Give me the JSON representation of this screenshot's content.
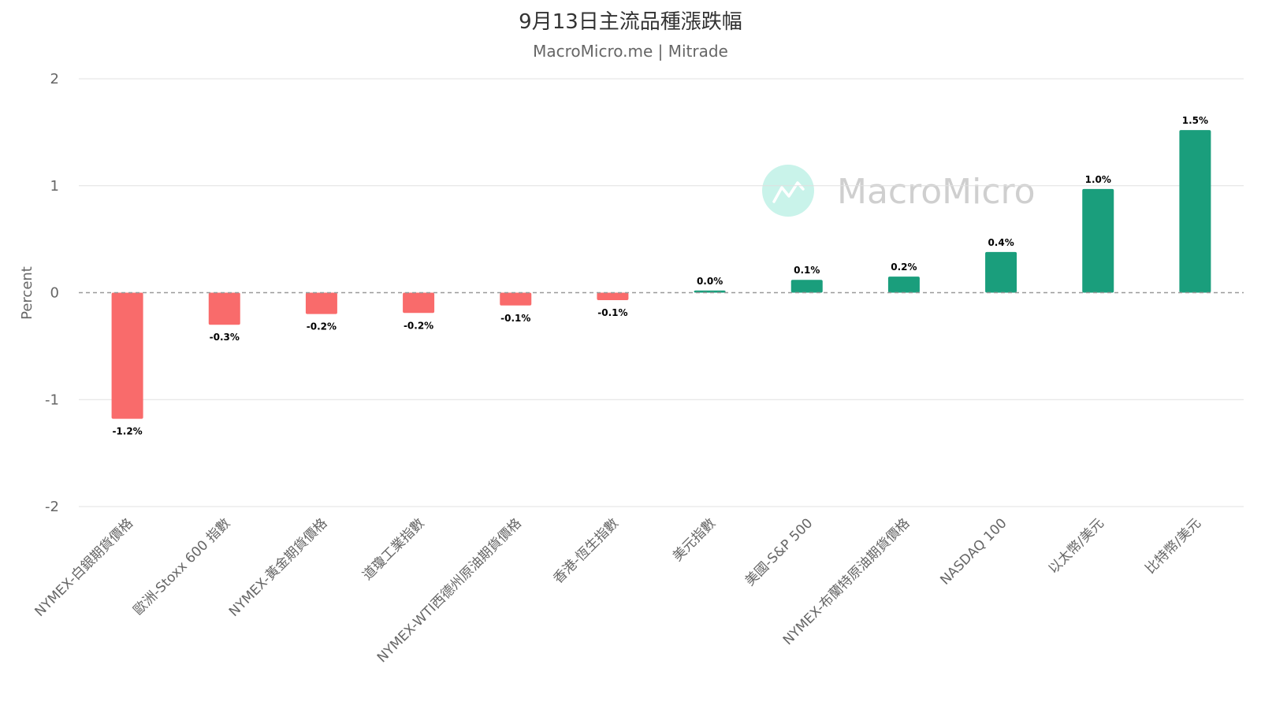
{
  "chart_data": {
    "type": "bar",
    "title": "9月13日主流品種漲跌幅",
    "subtitle": "MacroMicro.me | Mitrade",
    "xlabel": "",
    "ylabel": "Percent",
    "ylim": [
      -2,
      2
    ],
    "yticks": [
      "2",
      "1",
      "0",
      "-1",
      "-2"
    ],
    "grid": true,
    "legend": "none",
    "watermark": "MacroMicro",
    "colors": {
      "positive": "#1a9e7c",
      "negative": "#f96b6b",
      "zero_line": "#999999",
      "grid": "#e0e0e0",
      "watermark_circle": "#c9f3ea",
      "watermark_icon": "#ffffff"
    },
    "categories": [
      "NYMEX-白銀期貨價格",
      "歐洲-Stoxx 600 指數",
      "NYMEX-黃金期貨價格",
      "道瓊工業指數",
      "NYMEX-WTI西德州原油期貨價格",
      "香港-恆生指數",
      "美元指數",
      "美國-S&P 500",
      "NYMEX-布蘭特原油期貨價格",
      "NASDAQ 100",
      "以太幣/美元",
      "比特幣/美元"
    ],
    "values": [
      -1.18,
      -0.3,
      -0.2,
      -0.19,
      -0.12,
      -0.07,
      0.02,
      0.12,
      0.15,
      0.38,
      0.97,
      1.52
    ],
    "data_labels": [
      "-1.2%",
      "-0.3%",
      "-0.2%",
      "-0.2%",
      "-0.1%",
      "-0.1%",
      "0.0%",
      "0.1%",
      "0.2%",
      "0.4%",
      "1.0%",
      "1.5%"
    ]
  }
}
